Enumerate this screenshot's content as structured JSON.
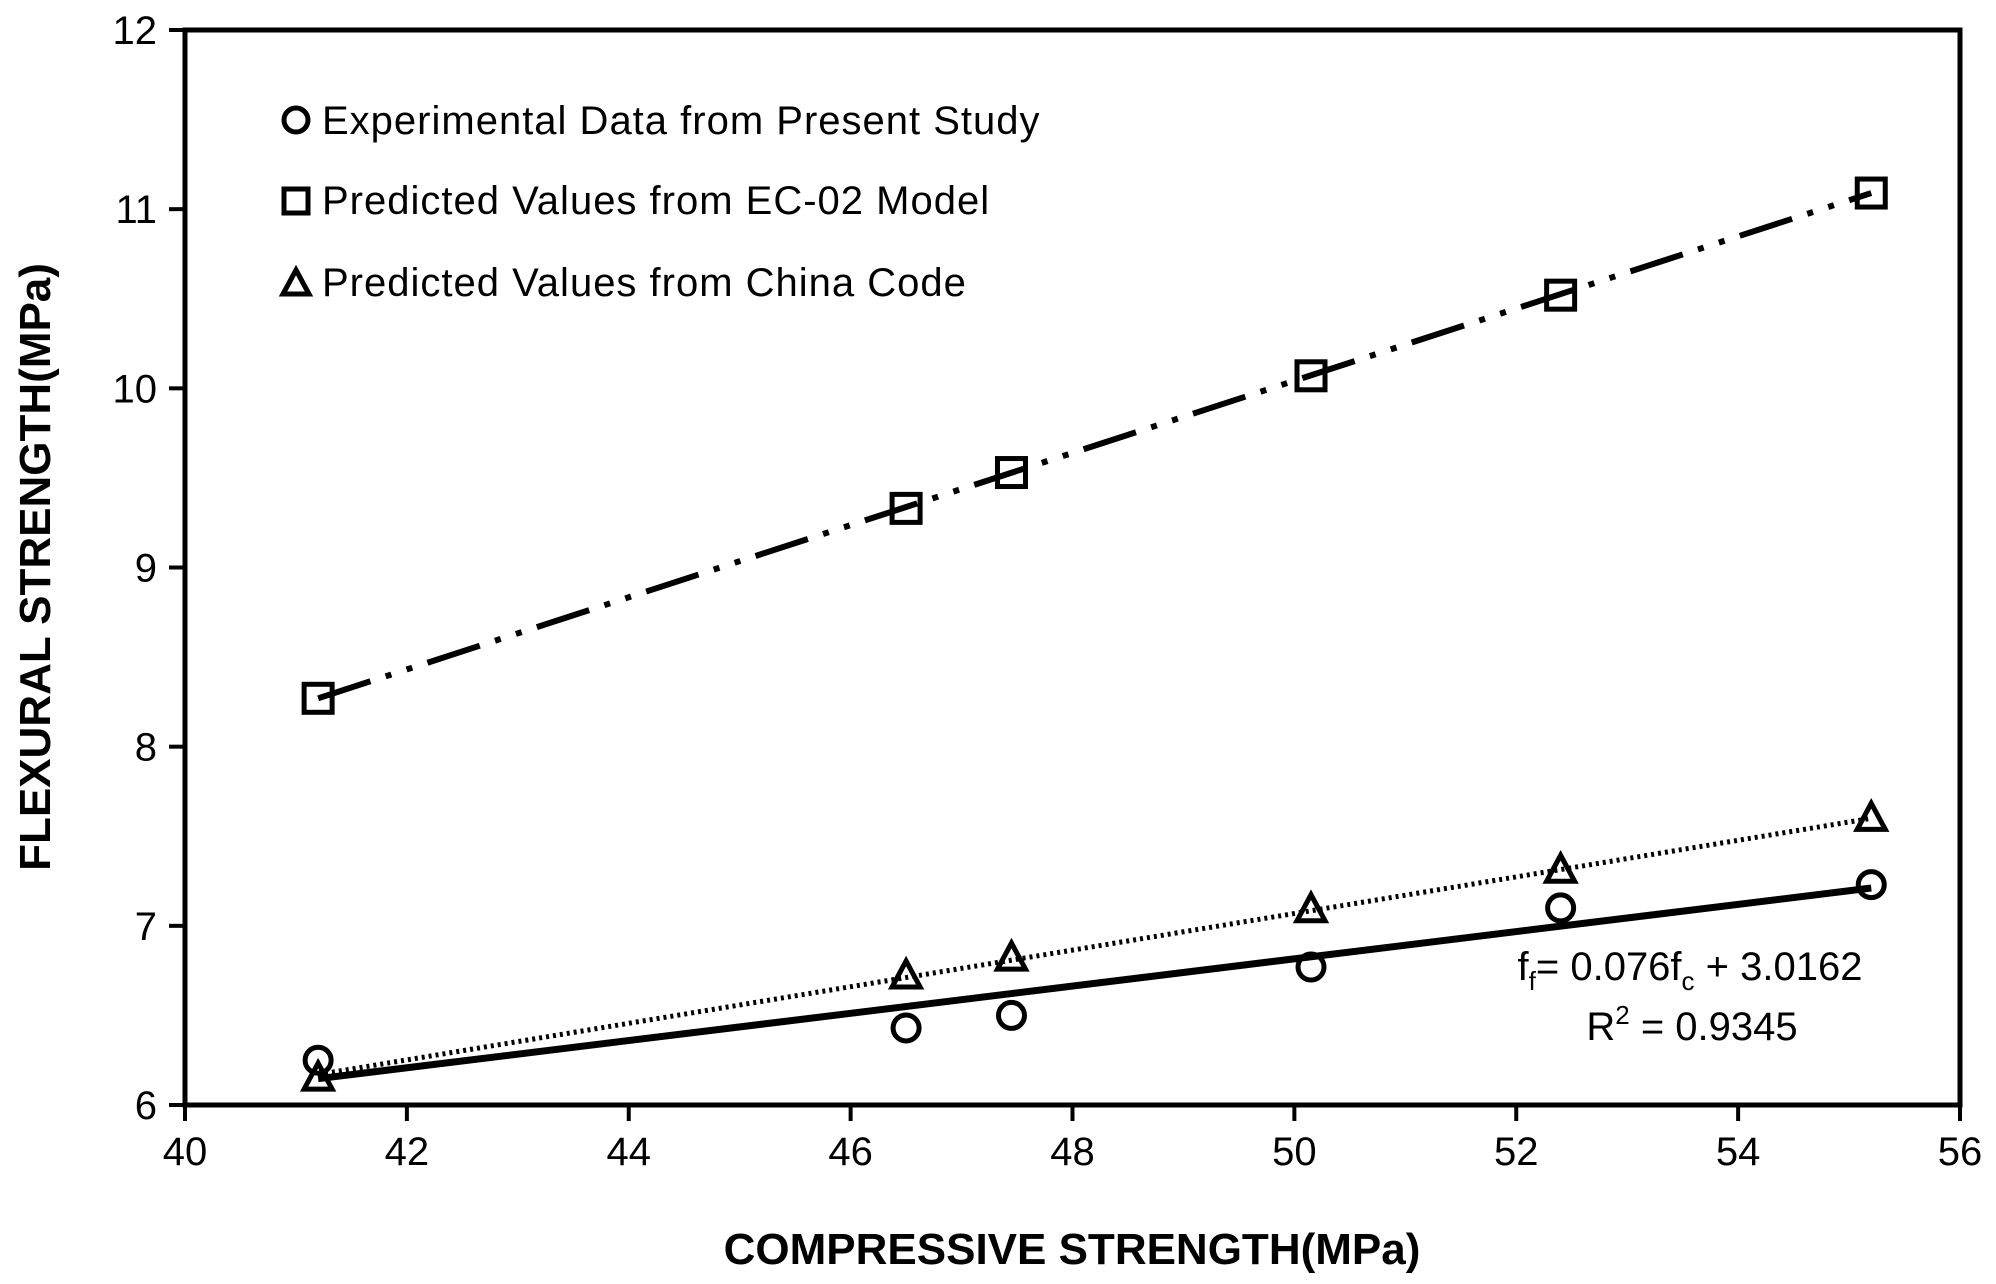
{
  "chart_data": {
    "type": "scatter",
    "title": "",
    "xlabel": "COMPRESSIVE STRENGTH(MPa)",
    "ylabel": "FLEXURAL STRENGTH(MPa)",
    "xlim": [
      40,
      56
    ],
    "ylim": [
      6,
      12
    ],
    "xticks": [
      40,
      42,
      44,
      46,
      48,
      50,
      52,
      54,
      56
    ],
    "yticks": [
      6,
      7,
      8,
      9,
      10,
      11,
      12
    ],
    "grid": false,
    "legend_position": "top-left",
    "series": [
      {
        "name": "Experimental Data from Present Study",
        "marker": "circle",
        "x": [
          41.2,
          46.5,
          47.45,
          50.15,
          52.4,
          55.2
        ],
        "y": [
          6.25,
          6.43,
          6.5,
          6.77,
          7.1,
          7.23
        ],
        "trendline": {
          "style": "solid",
          "x": [
            41.2,
            55.2
          ],
          "y": [
            6.147,
            7.211
          ]
        }
      },
      {
        "name": "Predicted Values from EC-02 Model",
        "marker": "square",
        "x": [
          41.2,
          46.5,
          47.45,
          50.15,
          52.4,
          55.2
        ],
        "y": [
          8.27,
          9.33,
          9.53,
          10.07,
          10.52,
          11.09
        ],
        "trendline": {
          "style": "dash-dot-dot",
          "x": [
            41.2,
            55.2
          ],
          "y": [
            8.27,
            11.09
          ]
        }
      },
      {
        "name": "Predicted Values from China Code",
        "marker": "triangle",
        "x": [
          41.2,
          46.5,
          47.45,
          50.15,
          52.4,
          55.2
        ],
        "y": [
          6.15,
          6.72,
          6.82,
          7.09,
          7.31,
          7.6
        ],
        "trendline": {
          "style": "dotted",
          "x": [
            41.2,
            55.2
          ],
          "y": [
            6.17,
            7.6
          ]
        }
      }
    ],
    "annotations": {
      "equation": {
        "f1": "f",
        "s1": "f",
        "mid": "= 0.076f",
        "s2": "c",
        "tail": " + 3.0162"
      },
      "r2": {
        "pre": "R",
        "sup": "2",
        "post": " = 0.9345"
      }
    }
  }
}
